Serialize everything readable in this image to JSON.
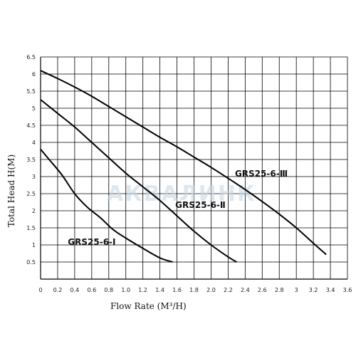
{
  "watermark": "АКВАЛИНК",
  "chart_data": {
    "type": "line",
    "title": "",
    "xlabel": "Flow Rate (M³/H)",
    "ylabel": "Total Head H(M)",
    "xlim": [
      0,
      3.6
    ],
    "ylim": [
      0,
      6.5
    ],
    "x_ticks": [
      "0",
      "0.2",
      "0.4",
      "0.6",
      "0.8",
      "1.0",
      "1.2",
      "1.4",
      "1.6",
      "1.8",
      "2.0",
      "2.2",
      "2.4",
      "2.6",
      "2.8",
      "3",
      "3.2",
      "3.4",
      "3.6"
    ],
    "y_ticks": [
      "0.5",
      "1",
      "1.5",
      "2",
      "2.5",
      "3",
      "3.5",
      "4",
      "4.5",
      "5",
      "5.5",
      "6",
      "6.5"
    ],
    "grid": true,
    "series": [
      {
        "name": "GRS25-6-Ⅰ",
        "x": [
          0,
          0.1,
          0.25,
          0.4,
          0.55,
          0.7,
          0.85,
          1.0,
          1.2,
          1.4,
          1.55
        ],
        "y": [
          3.8,
          3.5,
          3.05,
          2.5,
          2.1,
          1.8,
          1.45,
          1.2,
          0.9,
          0.62,
          0.5
        ]
      },
      {
        "name": "GRS25-6-Ⅱ",
        "x": [
          0,
          0.2,
          0.4,
          0.6,
          0.8,
          1.0,
          1.2,
          1.4,
          1.6,
          1.8,
          2.0,
          2.2,
          2.3
        ],
        "y": [
          5.25,
          4.85,
          4.45,
          4.0,
          3.55,
          3.1,
          2.7,
          2.3,
          1.85,
          1.4,
          1.0,
          0.65,
          0.5
        ]
      },
      {
        "name": "GRS25-6-Ⅲ",
        "x": [
          0,
          0.2,
          0.4,
          0.6,
          0.8,
          1.0,
          1.2,
          1.4,
          1.6,
          1.8,
          2.0,
          2.2,
          2.4,
          2.6,
          2.8,
          3.0,
          3.2,
          3.35
        ],
        "y": [
          6.1,
          5.87,
          5.62,
          5.35,
          5.05,
          4.75,
          4.45,
          4.15,
          3.87,
          3.57,
          3.27,
          2.95,
          2.62,
          2.27,
          1.9,
          1.5,
          1.05,
          0.72
        ]
      }
    ]
  }
}
